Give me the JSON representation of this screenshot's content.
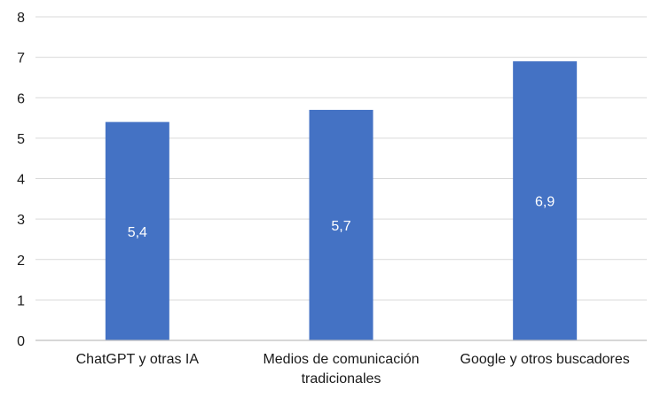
{
  "chart_data": {
    "type": "bar",
    "title": "",
    "xlabel": "",
    "ylabel": "",
    "categories": [
      [
        "ChatGPT y otras IA"
      ],
      [
        "Medios de comunicación",
        "tradicionales"
      ],
      [
        "Google y otros buscadores"
      ]
    ],
    "values": [
      5.4,
      5.7,
      6.9
    ],
    "data_labels": [
      "5,4",
      "5,7",
      "6,9"
    ],
    "ylim": [
      0,
      8
    ],
    "yticks": [
      0,
      1,
      2,
      3,
      4,
      5,
      6,
      7,
      8
    ],
    "ytick_labels": [
      "0",
      "1",
      "2",
      "3",
      "4",
      "5",
      "6",
      "7",
      "8"
    ],
    "grid": true,
    "legend": "none",
    "colors": {
      "bar": "#4472c4",
      "grid": "#d9d9d9",
      "axis": "#bfbfbf",
      "text": "#1a1a1a",
      "data_label": "#ffffff"
    }
  }
}
